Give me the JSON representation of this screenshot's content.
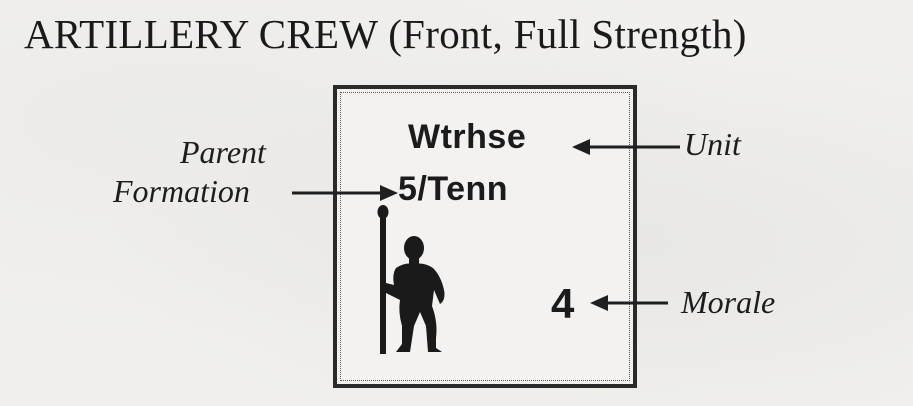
{
  "title": "ARTILLERY CREW (Front, Full Strength)",
  "counter": {
    "unit": "Wtrhse",
    "parent_formation": "5/Tenn",
    "morale": "4",
    "figure_icon": "artillery-crewman-icon"
  },
  "callouts": {
    "parent_formation_line1": "Parent",
    "parent_formation_line2": "Formation",
    "unit": "Unit",
    "morale": "Morale"
  }
}
